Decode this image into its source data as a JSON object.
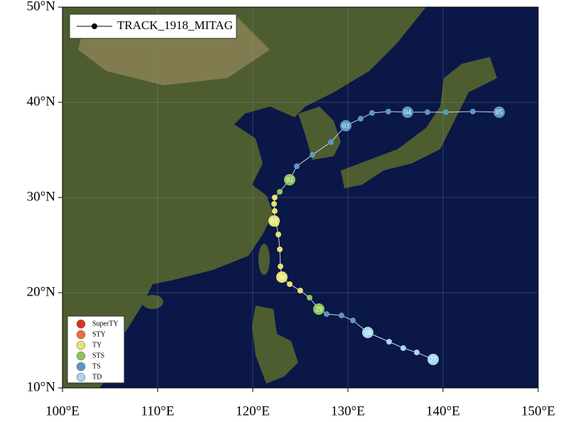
{
  "chart_data": {
    "type": "map-track",
    "xlim": [
      100,
      150
    ],
    "ylim": [
      10,
      50
    ],
    "xticks": [
      {
        "value": 100,
        "label": "100°E"
      },
      {
        "value": 110,
        "label": "110°E"
      },
      {
        "value": 120,
        "label": "120°E"
      },
      {
        "value": 130,
        "label": "130°E"
      },
      {
        "value": 140,
        "label": "140°E"
      },
      {
        "value": 150,
        "label": "150°E"
      }
    ],
    "yticks": [
      {
        "value": 10,
        "label": "10°N"
      },
      {
        "value": 20,
        "label": "20°N"
      },
      {
        "value": 30,
        "label": "30°N"
      },
      {
        "value": 40,
        "label": "40°N"
      },
      {
        "value": 50,
        "label": "50°N"
      }
    ],
    "grid": true,
    "series": [
      {
        "name": "TRACK_1918_MITAG",
        "color": "#000000",
        "x": [
          138.96,
          137.24,
          135.82,
          134.33,
          132.09,
          130.52,
          129.33,
          127.76,
          126.94,
          125.97,
          124.99,
          123.88,
          123.06,
          122.91,
          122.84,
          122.69,
          122.46,
          122.24,
          122.31,
          122.24,
          122.31,
          122.84,
          123.88,
          124.63,
          126.27,
          128.21,
          129.78,
          131.34,
          132.54,
          134.25,
          136.27,
          138.36,
          140.3,
          143.13,
          145.9
        ],
        "values": [
          12.99,
          13.73,
          14.18,
          14.85,
          15.82,
          17.09,
          17.61,
          17.76,
          18.28,
          19.48,
          20.22,
          20.9,
          21.64,
          22.76,
          24.55,
          26.12,
          27.24,
          27.54,
          28.58,
          29.33,
          30.0,
          30.6,
          31.87,
          33.28,
          34.48,
          35.82,
          37.54,
          38.28,
          38.88,
          39.03,
          38.96,
          38.96,
          38.96,
          39.03,
          38.96
        ],
        "intensity": [
          "TD",
          "TD",
          "TD",
          "TD",
          "TD",
          "TS",
          "TS",
          "TS",
          "STS",
          "STS",
          "TY",
          "TY",
          "TY",
          "TY",
          "TY",
          "TY",
          "TY",
          "TY",
          "TY",
          "TY",
          "TY",
          "STS",
          "STS",
          "TS",
          "TS",
          "TS",
          "TS",
          "TS",
          "TS",
          "TS",
          "TS",
          "TS",
          "TS",
          "TS",
          "TS"
        ],
        "point_labels": [
          "27",
          null,
          null,
          null,
          "28",
          null,
          null,
          null,
          "29",
          null,
          null,
          null,
          "30",
          null,
          null,
          null,
          null,
          "01",
          null,
          null,
          null,
          null,
          "02",
          null,
          null,
          null,
          "03",
          null,
          null,
          null,
          "04",
          null,
          null,
          null,
          "05"
        ]
      }
    ],
    "intensity_legend": [
      {
        "name": "SuperTY",
        "color": "#d7342a"
      },
      {
        "name": "STY",
        "color": "#f06a3a"
      },
      {
        "name": "TY",
        "color": "#e3e472"
      },
      {
        "name": "STS",
        "color": "#8cc55a"
      },
      {
        "name": "TS",
        "color": "#5b99c2"
      },
      {
        "name": "TD",
        "color": "#a8d6f2"
      }
    ]
  }
}
